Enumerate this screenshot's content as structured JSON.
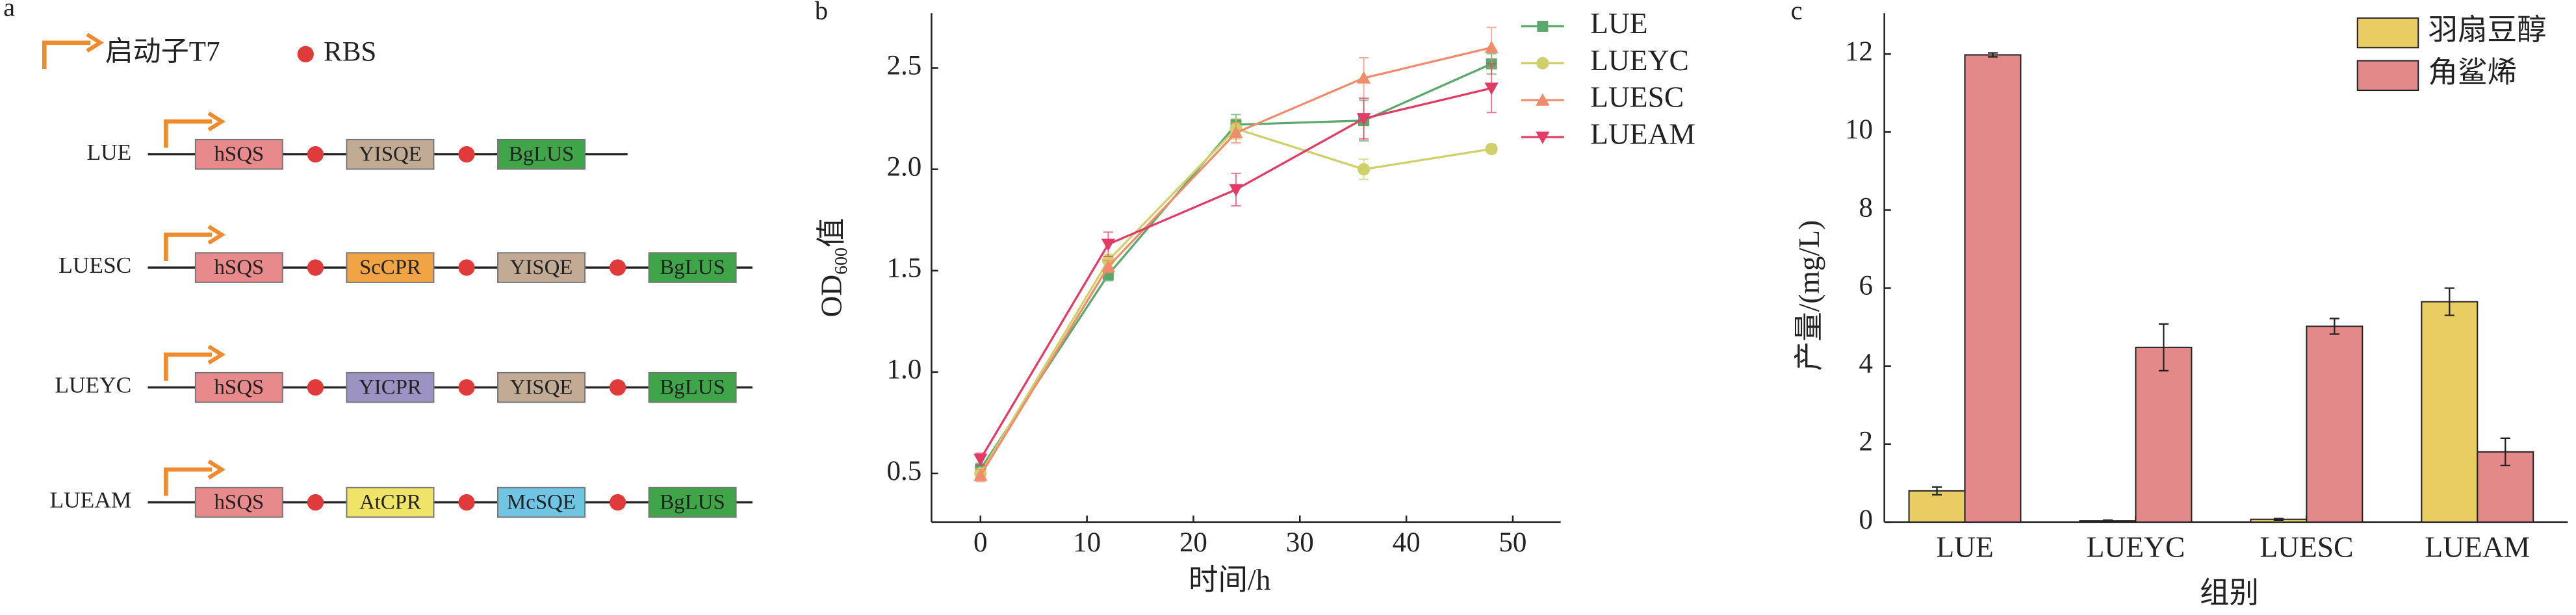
{
  "panel_a": {
    "label": "a",
    "legend": {
      "promoter": "启动子T7",
      "rbs": "RBS"
    },
    "constructs": [
      {
        "name": "LUE",
        "genes": [
          {
            "label": "hSQS",
            "color": "#e8898c"
          },
          {
            "label": "YISQE",
            "color": "#c2ab95"
          },
          {
            "label": "BgLUS",
            "color": "#3fa548"
          }
        ]
      },
      {
        "name": "LUESC",
        "genes": [
          {
            "label": "hSQS",
            "color": "#e8898c"
          },
          {
            "label": "ScCPR",
            "color": "#f2a444"
          },
          {
            "label": "YISQE",
            "color": "#c2ab95"
          },
          {
            "label": "BgLUS",
            "color": "#3fa548"
          }
        ]
      },
      {
        "name": "LUEYC",
        "genes": [
          {
            "label": "hSQS",
            "color": "#e8898c"
          },
          {
            "label": "YICPR",
            "color": "#9d92c4"
          },
          {
            "label": "YISQE",
            "color": "#c2ab95"
          },
          {
            "label": "BgLUS",
            "color": "#3fa548"
          }
        ]
      },
      {
        "name": "LUEAM",
        "genes": [
          {
            "label": "hSQS",
            "color": "#e8898c"
          },
          {
            "label": "AtCPR",
            "color": "#f0e468"
          },
          {
            "label": "McSQE",
            "color": "#70c4e4"
          },
          {
            "label": "BgLUS",
            "color": "#3fa548"
          }
        ]
      }
    ]
  },
  "chart_data": [
    {
      "type": "line",
      "label": "b",
      "xlabel": "时间/h",
      "ylabel": "OD",
      "ylabel_sub": "600",
      "ylabel_suffix": "值",
      "x": [
        0,
        12,
        24,
        36,
        48
      ],
      "series": [
        {
          "name": "LUE",
          "color": "#5aa86c",
          "marker": "square",
          "values": [
            0.52,
            1.48,
            2.22,
            2.24,
            2.52
          ],
          "errors": [
            0.03,
            0.03,
            0.05,
            0.1,
            0.05
          ]
        },
        {
          "name": "LUEYC",
          "color": "#cfd06a",
          "marker": "circle",
          "values": [
            0.5,
            1.55,
            2.2,
            2.0,
            2.1
          ],
          "errors": [
            0.02,
            0.03,
            0.05,
            0.05,
            0.02
          ]
        },
        {
          "name": "LUESC",
          "color": "#f08c6c",
          "marker": "triangle-up",
          "values": [
            0.49,
            1.52,
            2.18,
            2.45,
            2.6
          ],
          "errors": [
            0.03,
            0.03,
            0.05,
            0.1,
            0.1
          ]
        },
        {
          "name": "LUEAM",
          "color": "#e03c66",
          "marker": "triangle-down",
          "values": [
            0.57,
            1.63,
            1.9,
            2.25,
            2.4
          ],
          "errors": [
            0.03,
            0.06,
            0.08,
            0.1,
            0.12
          ]
        }
      ],
      "xlim": [
        -4.6,
        54.5
      ],
      "ylim": [
        0.26,
        2.77
      ],
      "xticks": [
        0,
        10,
        20,
        30,
        40,
        50
      ],
      "yticks": [
        0.5,
        {
          "value": 1,
          "label": "1.0"
        },
        1.5,
        {
          "value": 2,
          "label": "2.0"
        },
        2.5
      ],
      "legend": "upper right outside"
    },
    {
      "type": "bar",
      "label": "c",
      "xlabel": "组别",
      "ylabel": "产量/(mg/L)",
      "categories": [
        "LUE",
        "LUEYC",
        "LUESC",
        "LUEAM"
      ],
      "series": [
        {
          "name": "羽扇豆醇",
          "color": "#e9cd62",
          "values": [
            0.8,
            0.03,
            0.07,
            5.65
          ],
          "errors": [
            0.1,
            0.02,
            0.02,
            0.35
          ]
        },
        {
          "name": "角鲨烯",
          "color": "#e3898a",
          "values": [
            11.98,
            4.48,
            5.02,
            1.8
          ],
          "errors": [
            0.05,
            0.6,
            0.2,
            0.35
          ]
        }
      ],
      "ylim": [
        0,
        13.05
      ],
      "yticks": [
        0,
        2,
        4,
        6,
        8,
        10,
        12
      ],
      "legend": "upper right"
    }
  ]
}
